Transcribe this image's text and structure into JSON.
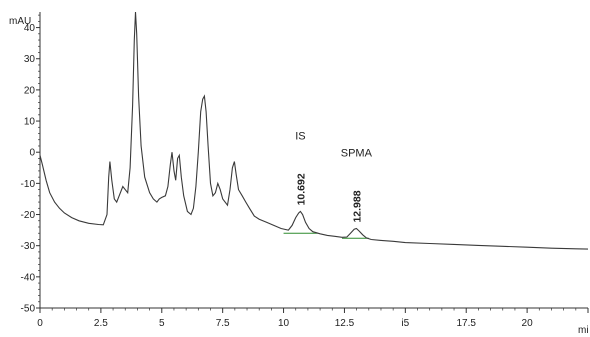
{
  "chart_data": {
    "type": "line",
    "title": "",
    "ylabel": "mAU",
    "xlabel": "mi",
    "xlim": [
      0,
      22.5
    ],
    "ylim": [
      -50,
      45
    ],
    "x_ticks": [
      0,
      2.5,
      5,
      7.5,
      10,
      12.5,
      15,
      17.5,
      20
    ],
    "x_tick_labels": [
      "0",
      "2.5",
      "5",
      "7.5",
      "10",
      "12.5",
      "i5",
      "17.5",
      "20"
    ],
    "y_ticks": [
      40,
      30,
      20,
      10,
      0,
      -10,
      -20,
      -30,
      -40,
      -50
    ],
    "y_tick_labels": [
      "40",
      "30",
      "20",
      "10",
      "0",
      "-10",
      "-20",
      "-30",
      "-40",
      "-50"
    ],
    "grid": false,
    "series": [
      {
        "color": "#3a3a3a",
        "points": [
          [
            0.0,
            -1
          ],
          [
            0.1,
            -4
          ],
          [
            0.25,
            -9
          ],
          [
            0.4,
            -13
          ],
          [
            0.6,
            -16
          ],
          [
            0.8,
            -18
          ],
          [
            1.0,
            -19.5
          ],
          [
            1.3,
            -21
          ],
          [
            1.6,
            -22
          ],
          [
            2.0,
            -22.8
          ],
          [
            2.4,
            -23.2
          ],
          [
            2.6,
            -23.3
          ],
          [
            2.75,
            -20
          ],
          [
            2.82,
            -8
          ],
          [
            2.87,
            -3
          ],
          [
            2.95,
            -9
          ],
          [
            3.05,
            -15
          ],
          [
            3.15,
            -16
          ],
          [
            3.3,
            -13
          ],
          [
            3.4,
            -11
          ],
          [
            3.5,
            -12
          ],
          [
            3.6,
            -13
          ],
          [
            3.7,
            -5
          ],
          [
            3.8,
            15
          ],
          [
            3.87,
            36
          ],
          [
            3.92,
            45
          ],
          [
            3.97,
            38
          ],
          [
            4.05,
            18
          ],
          [
            4.15,
            2
          ],
          [
            4.3,
            -8
          ],
          [
            4.5,
            -13
          ],
          [
            4.65,
            -15
          ],
          [
            4.8,
            -16
          ],
          [
            4.9,
            -15
          ],
          [
            5.0,
            -14.5
          ],
          [
            5.15,
            -14
          ],
          [
            5.25,
            -11
          ],
          [
            5.35,
            -4
          ],
          [
            5.42,
            0
          ],
          [
            5.5,
            -6
          ],
          [
            5.57,
            -9
          ],
          [
            5.65,
            -2
          ],
          [
            5.72,
            -1
          ],
          [
            5.8,
            -8
          ],
          [
            5.9,
            -14
          ],
          [
            6.05,
            -19
          ],
          [
            6.2,
            -20
          ],
          [
            6.3,
            -18
          ],
          [
            6.4,
            -11
          ],
          [
            6.5,
            0
          ],
          [
            6.6,
            13
          ],
          [
            6.68,
            17
          ],
          [
            6.75,
            18
          ],
          [
            6.82,
            13
          ],
          [
            6.9,
            2
          ],
          [
            7.0,
            -10
          ],
          [
            7.1,
            -14
          ],
          [
            7.2,
            -13
          ],
          [
            7.3,
            -10
          ],
          [
            7.4,
            -12
          ],
          [
            7.5,
            -15
          ],
          [
            7.6,
            -16
          ],
          [
            7.7,
            -17
          ],
          [
            7.8,
            -12
          ],
          [
            7.9,
            -5
          ],
          [
            7.98,
            -3
          ],
          [
            8.05,
            -7
          ],
          [
            8.15,
            -12
          ],
          [
            8.3,
            -14
          ],
          [
            8.45,
            -16
          ],
          [
            8.6,
            -18
          ],
          [
            8.8,
            -20.5
          ],
          [
            9.0,
            -21.5
          ],
          [
            9.3,
            -22.5
          ],
          [
            9.6,
            -23.5
          ],
          [
            9.9,
            -24.5
          ],
          [
            10.2,
            -25
          ],
          [
            10.35,
            -23.5
          ],
          [
            10.5,
            -21
          ],
          [
            10.62,
            -19.5
          ],
          [
            10.69,
            -19
          ],
          [
            10.78,
            -20
          ],
          [
            10.9,
            -22.5
          ],
          [
            11.05,
            -24.5
          ],
          [
            11.2,
            -25.5
          ],
          [
            11.5,
            -26.2
          ],
          [
            11.8,
            -26.7
          ],
          [
            12.1,
            -27
          ],
          [
            12.4,
            -27.3
          ],
          [
            12.6,
            -27.2
          ],
          [
            12.75,
            -26
          ],
          [
            12.9,
            -24.7
          ],
          [
            12.99,
            -24.5
          ],
          [
            13.1,
            -25.3
          ],
          [
            13.25,
            -26.5
          ],
          [
            13.4,
            -27.5
          ],
          [
            13.6,
            -28
          ],
          [
            14.0,
            -28.3
          ],
          [
            14.5,
            -28.6
          ],
          [
            15.0,
            -29
          ],
          [
            16.0,
            -29.3
          ],
          [
            17.0,
            -29.6
          ],
          [
            18.0,
            -29.9
          ],
          [
            19.0,
            -30.2
          ],
          [
            20.0,
            -30.5
          ],
          [
            21.0,
            -30.8
          ],
          [
            22.0,
            -31
          ],
          [
            22.5,
            -31.1
          ]
        ]
      }
    ],
    "baselines": [
      [
        [
          10.0,
          -26
        ],
        [
          11.4,
          -26
        ]
      ],
      [
        [
          12.4,
          -27.6
        ],
        [
          13.5,
          -27.6
        ]
      ]
    ],
    "peak_annotations": [
      {
        "rt_label": "10.692",
        "name": "IS",
        "x": 10.692,
        "y": -19
      },
      {
        "rt_label": "12.988",
        "name": "SPMA",
        "x": 12.988,
        "y": -24.5
      }
    ]
  }
}
